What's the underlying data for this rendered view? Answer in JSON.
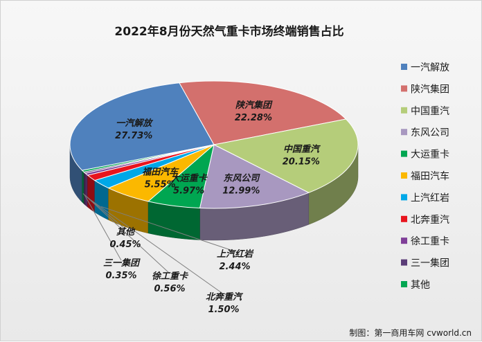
{
  "chart_data": {
    "type": "pie",
    "title": "2022年8月份天然气重卡市场终端销售占比",
    "slices": [
      {
        "name": "一汽解放",
        "value": 27.73,
        "label": "27.73%",
        "color": "#4f81bd"
      },
      {
        "name": "陕汽集团",
        "value": 22.28,
        "label": "22.28%",
        "color": "#d3706d"
      },
      {
        "name": "中国重汽",
        "value": 20.15,
        "label": "20.15%",
        "color": "#b5cd7a"
      },
      {
        "name": "东风公司",
        "value": 12.99,
        "label": "12.99%",
        "color": "#a898c0"
      },
      {
        "name": "大运重卡",
        "value": 5.97,
        "label": "5.97%",
        "color": "#00a651"
      },
      {
        "name": "福田汽车",
        "value": 5.55,
        "label": "5.55%",
        "color": "#fbb800"
      },
      {
        "name": "上汽红岩",
        "value": 2.44,
        "label": "2.44%",
        "color": "#00a8e8"
      },
      {
        "name": "北奔重汽",
        "value": 1.5,
        "label": "1.50%",
        "color": "#e8141e"
      },
      {
        "name": "徐工重卡",
        "value": 0.56,
        "label": "0.56%",
        "color": "#7f3f98"
      },
      {
        "name": "三一集团",
        "value": 0.35,
        "label": "0.35%",
        "color": "#5a3d78"
      },
      {
        "name": "其他",
        "value": 0.45,
        "label": "0.45%",
        "color": "#00a651"
      }
    ],
    "legend_position": "right"
  },
  "source_note": "制图：第一商用车网 cvworld.cn"
}
